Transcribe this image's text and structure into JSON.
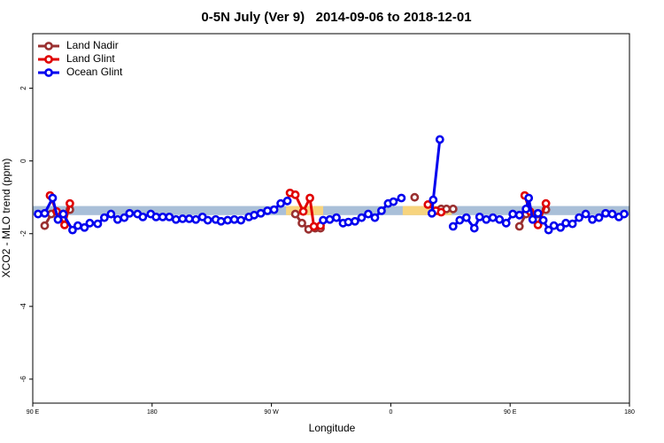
{
  "chart_data": {
    "type": "line",
    "title": "0-5N July (Ver 9)   2014-09-06 to 2018-12-01",
    "x_label": "Longitude",
    "y_label": "XCO2 - MLO trend (ppm)",
    "xlim": [
      90,
      540
    ],
    "ylim": [
      -6.66,
      3.5
    ],
    "xticks": [
      {
        "value": 90,
        "label": "90 E"
      },
      {
        "value": 180,
        "label": "180"
      },
      {
        "value": 270,
        "label": "90 W"
      },
      {
        "value": 360,
        "label": "0"
      },
      {
        "value": 450,
        "label": "90 E"
      },
      {
        "value": 540,
        "label": "180"
      }
    ],
    "yticks": [
      2,
      0,
      -2,
      -4,
      -6
    ],
    "legend": "top-left",
    "bands": [
      {
        "xlim": [
          90,
          540
        ],
        "ylim": [
          -1.49,
          -1.24
        ],
        "color": "#a9bfd8"
      },
      {
        "xlim": [
          281,
          309
        ],
        "ylim": [
          -1.49,
          -1.24
        ],
        "color": "#f7d47e"
      },
      {
        "xlim": [
          369,
          406
        ],
        "ylim": [
          -1.49,
          -1.24
        ],
        "color": "#f7d47e"
      }
    ],
    "series": [
      {
        "name": "Land Nadir",
        "color": "#9a3030",
        "x": [
          99,
          104,
          113,
          118,
          null,
          288,
          293,
          298,
          303,
          307,
          null,
          378,
          null,
          398,
          402,
          407,
          null,
          457,
          462,
          471,
          477
        ],
        "values": [
          -1.78,
          -1.46,
          -1.46,
          -1.34,
          null,
          -1.46,
          -1.71,
          -1.88,
          -1.85,
          -1.85,
          null,
          -1.0,
          null,
          -1.32,
          -1.32,
          -1.32,
          null,
          -1.8,
          -1.46,
          -1.46,
          -1.34
        ]
      },
      {
        "name": "Land Glint",
        "color": "#e00000",
        "x": [
          103,
          108,
          114,
          118,
          null,
          284,
          288,
          294,
          299,
          302,
          307,
          null,
          388,
          394,
          398,
          null,
          461,
          465,
          471,
          477
        ],
        "values": [
          -0.95,
          -1.39,
          -1.76,
          -1.17,
          null,
          -0.88,
          -0.93,
          -1.39,
          -1.02,
          -1.8,
          -1.78,
          null,
          -1.2,
          -1.37,
          -1.41,
          null,
          -0.95,
          -1.39,
          -1.76,
          -1.17
        ]
      },
      {
        "name": "Ocean Glint",
        "color": "#0000ee",
        "x": [
          94,
          99,
          105,
          109,
          113,
          120,
          124,
          129,
          133,
          139,
          144,
          149,
          154,
          159,
          163,
          169,
          173,
          179,
          183,
          188,
          193,
          198,
          203,
          208,
          213,
          218,
          222,
          228,
          232,
          237,
          242,
          247,
          253,
          257,
          262,
          267,
          272,
          277,
          282,
          null,
          309,
          314,
          319,
          324,
          328,
          333,
          338,
          343,
          348,
          353,
          358,
          362,
          368,
          null,
          391,
          392,
          397,
          null,
          407,
          412,
          417,
          423,
          427,
          432,
          437,
          442,
          447,
          452,
          457,
          462,
          464,
          467,
          471,
          475,
          479,
          483,
          488,
          492,
          497,
          502,
          507,
          512,
          517,
          522,
          527,
          532,
          536
        ],
        "values": [
          -1.46,
          -1.44,
          -1.02,
          -1.61,
          -1.46,
          -1.9,
          -1.78,
          -1.83,
          -1.71,
          -1.73,
          -1.56,
          -1.46,
          -1.61,
          -1.56,
          -1.44,
          -1.46,
          -1.54,
          -1.46,
          -1.54,
          -1.54,
          -1.54,
          -1.61,
          -1.59,
          -1.59,
          -1.61,
          -1.54,
          -1.63,
          -1.61,
          -1.66,
          -1.63,
          -1.61,
          -1.63,
          -1.54,
          -1.49,
          -1.44,
          -1.37,
          -1.34,
          -1.17,
          -1.1,
          null,
          -1.63,
          -1.61,
          -1.56,
          -1.71,
          -1.68,
          -1.66,
          -1.56,
          -1.46,
          -1.56,
          -1.37,
          -1.17,
          -1.12,
          -1.02,
          null,
          -1.44,
          -1.07,
          0.59,
          null,
          -1.8,
          -1.63,
          -1.56,
          -1.85,
          -1.54,
          -1.61,
          -1.56,
          -1.61,
          -1.71,
          -1.46,
          -1.49,
          -1.32,
          -1.02,
          -1.61,
          -1.44,
          -1.63,
          -1.9,
          -1.78,
          -1.83,
          -1.71,
          -1.73,
          -1.56,
          -1.46,
          -1.61,
          -1.56,
          -1.44,
          -1.46,
          -1.54,
          -1.46
        ]
      }
    ]
  }
}
